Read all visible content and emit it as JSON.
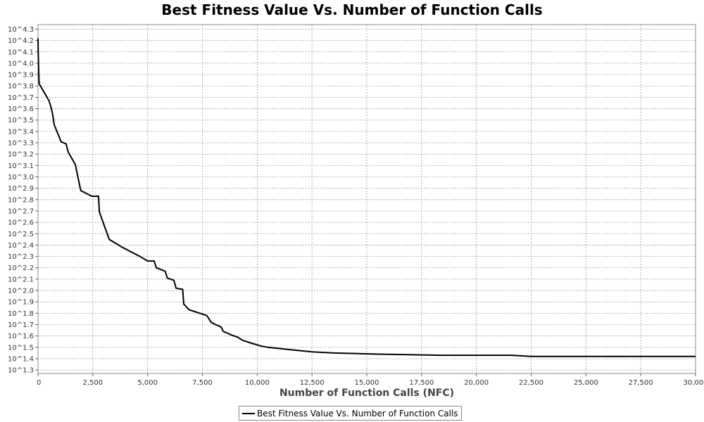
{
  "chart_data": {
    "type": "line",
    "title": "Best Fitness Value Vs. Number of Function Calls",
    "xlabel": "Number of Function Calls (NFC)",
    "ylabel": "",
    "xlim": [
      0,
      30000
    ],
    "ylim_log10": [
      1.27,
      4.34
    ],
    "y_scale": "log10",
    "grid": true,
    "legend_position": "bottom-center",
    "line_color": "#000000",
    "x_ticks": [
      "0",
      "2,500",
      "5,000",
      "7,500",
      "10,000",
      "12,500",
      "15,000",
      "17,500",
      "20,000",
      "22,500",
      "25,000",
      "27,500",
      "30,000"
    ],
    "x_tick_values": [
      0,
      2500,
      5000,
      7500,
      10000,
      12500,
      15000,
      17500,
      20000,
      22500,
      25000,
      27500,
      30000
    ],
    "y_ticks": [
      "10^4.3",
      "10^4.2",
      "10^4.1",
      "10^4.0",
      "10^3.9",
      "10^3.8",
      "10^3.7",
      "10^3.6",
      "10^3.5",
      "10^3.4",
      "10^3.3",
      "10^3.2",
      "10^3.1",
      "10^3.0",
      "10^2.9",
      "10^2.8",
      "10^2.7",
      "10^2.6",
      "10^2.5",
      "10^2.4",
      "10^2.3",
      "10^2.2",
      "10^2.1",
      "10^2.0",
      "10^1.9",
      "10^1.8",
      "10^1.7",
      "10^1.6",
      "10^1.5",
      "10^1.4",
      "10^1.3"
    ],
    "y_tick_values": [
      4.3,
      4.2,
      4.1,
      4.0,
      3.9,
      3.8,
      3.7,
      3.6,
      3.5,
      3.4,
      3.3,
      3.2,
      3.1,
      3.0,
      2.9,
      2.8,
      2.7,
      2.6,
      2.5,
      2.4,
      2.3,
      2.2,
      2.1,
      2.0,
      1.9,
      1.8,
      1.7,
      1.6,
      1.5,
      1.4,
      1.3
    ],
    "series": [
      {
        "name": "Best Fitness Value Vs. Number of Function Calls",
        "x": [
          0,
          10,
          30,
          50,
          500,
          580,
          660,
          740,
          1050,
          1280,
          1360,
          1430,
          1700,
          1950,
          2450,
          2760,
          2800,
          3250,
          3850,
          4650,
          5000,
          5300,
          5400,
          5800,
          5900,
          6200,
          6300,
          6600,
          6650,
          6900,
          7700,
          7900,
          8100,
          8350,
          8450,
          8700,
          8800,
          9100,
          9350,
          9850,
          10200,
          10500,
          11000,
          11500,
          12500,
          13500,
          15500,
          18400,
          21600,
          22500,
          25500,
          30000
        ],
        "y_log10": [
          4.22,
          4.1,
          3.95,
          3.82,
          3.67,
          3.62,
          3.56,
          3.46,
          3.31,
          3.29,
          3.23,
          3.2,
          3.11,
          2.88,
          2.83,
          2.83,
          2.69,
          2.45,
          2.38,
          2.3,
          2.26,
          2.26,
          2.2,
          2.17,
          2.11,
          2.09,
          2.02,
          2.01,
          1.88,
          1.83,
          1.78,
          1.72,
          1.7,
          1.68,
          1.64,
          1.62,
          1.61,
          1.59,
          1.56,
          1.53,
          1.51,
          1.5,
          1.49,
          1.48,
          1.46,
          1.45,
          1.44,
          1.43,
          1.43,
          1.42,
          1.42,
          1.42
        ]
      }
    ]
  }
}
